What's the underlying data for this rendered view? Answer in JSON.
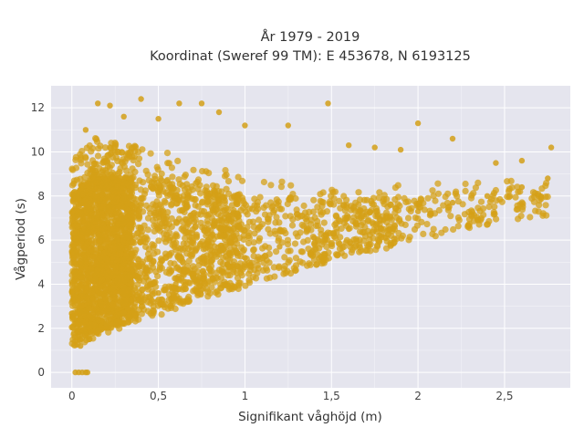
{
  "chart_data": {
    "type": "scatter",
    "title_lines": [
      "År 1979 - 2019",
      "Koordinat (Sweref 99 TM): E 453678, N 6193125"
    ],
    "xlabel": "Signifikant våghöjd (m)",
    "ylabel": "Vågperiod (s)",
    "xlim": [
      -0.12,
      2.88
    ],
    "ylim": [
      -0.7,
      13.0
    ],
    "x_ticks": [
      0,
      0.5,
      1,
      1.5,
      2,
      2.5
    ],
    "x_tick_labels": [
      "0",
      "0,5",
      "1",
      "1,5",
      "2",
      "2,5"
    ],
    "y_ticks": [
      0,
      2,
      4,
      6,
      8,
      10,
      12
    ],
    "y_tick_labels": [
      "0",
      "2",
      "4",
      "6",
      "8",
      "10",
      "12"
    ],
    "grid": true,
    "legend": "none",
    "marker_color": "#D4A017",
    "plot_background": "#E5E5EE",
    "series": [
      {
        "points": [
          [
            0.02,
            0
          ],
          [
            0.04,
            0
          ],
          [
            0.06,
            0
          ],
          [
            0.08,
            0
          ],
          [
            0.09,
            0
          ],
          [
            0.05,
            1.2
          ],
          [
            0.1,
            1.5
          ],
          [
            0.15,
            1.9
          ],
          [
            0.2,
            2.2
          ],
          [
            0.3,
            2.7
          ],
          [
            0.4,
            3.2
          ],
          [
            0.5,
            3.6
          ],
          [
            0.6,
            4.0
          ],
          [
            0.7,
            4.3
          ],
          [
            0.8,
            4.6
          ],
          [
            0.9,
            4.9
          ],
          [
            1.0,
            5.2
          ],
          [
            1.2,
            5.7
          ],
          [
            1.4,
            6.1
          ],
          [
            1.6,
            6.5
          ],
          [
            1.8,
            6.9
          ],
          [
            2.0,
            7.3
          ],
          [
            2.2,
            7.7
          ],
          [
            2.4,
            8.0
          ],
          [
            2.6,
            8.4
          ],
          [
            2.75,
            8.8
          ],
          [
            0.08,
            11.0
          ],
          [
            0.15,
            12.2
          ],
          [
            0.22,
            12.1
          ],
          [
            0.3,
            11.6
          ],
          [
            0.4,
            12.4
          ],
          [
            0.5,
            11.5
          ],
          [
            0.62,
            12.2
          ],
          [
            0.75,
            12.2
          ],
          [
            0.85,
            11.8
          ],
          [
            1.0,
            11.2
          ],
          [
            1.25,
            11.2
          ],
          [
            1.48,
            12.2
          ],
          [
            1.6,
            10.3
          ],
          [
            1.75,
            10.2
          ],
          [
            1.9,
            10.1
          ],
          [
            2.0,
            11.3
          ],
          [
            2.2,
            10.6
          ],
          [
            2.45,
            9.5
          ],
          [
            2.6,
            9.6
          ],
          [
            2.77,
            10.2
          ]
        ]
      }
    ]
  }
}
